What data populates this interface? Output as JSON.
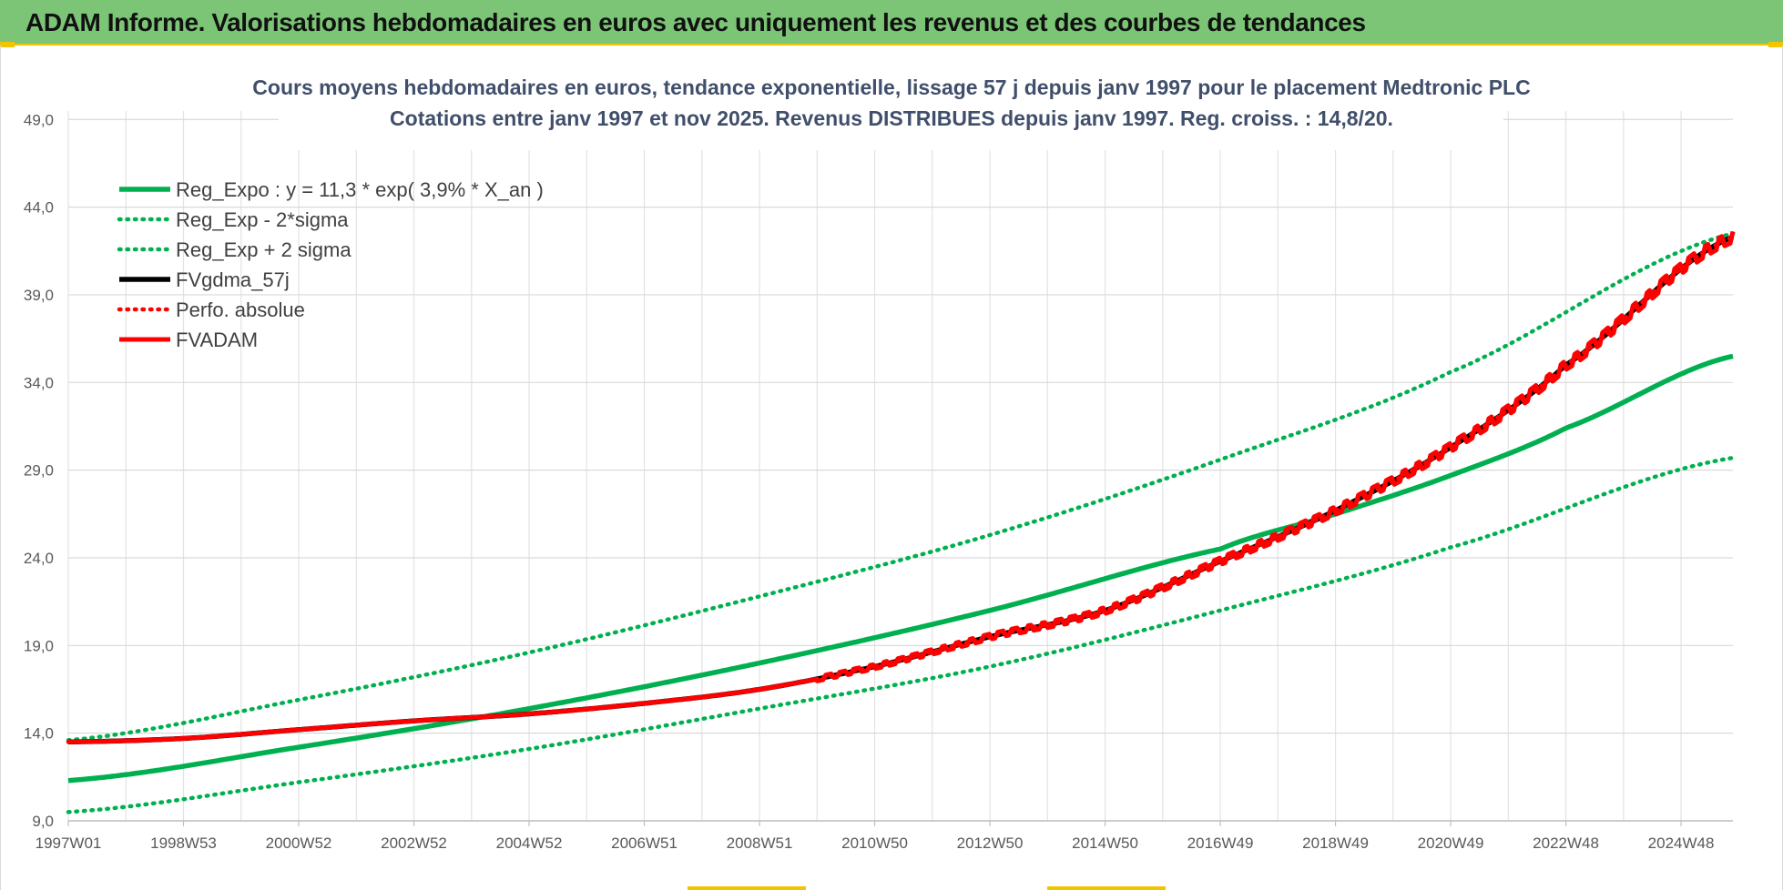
{
  "header": {
    "title": "ADAM Informe. Valorisations hebdomadaires en euros avec uniquement les revenus et des courbes de tendances"
  },
  "chart_data": {
    "type": "line",
    "title_line1": "Cours moyens hebdomadaires en euros, tendance exponentielle, lissage 57 j depuis janv 1997 pour le placement Medtronic PLC",
    "title_line2": "Cotations entre janv 1997 et nov 2025. Revenus DISTRIBUES depuis janv 1997. Reg. croiss. : 14,8/20.",
    "x_tick_labels": [
      "1997W01",
      "1998W53",
      "2000W52",
      "2002W52",
      "2004W52",
      "2006W51",
      "2008W51",
      "2010W50",
      "2012W50",
      "2014W50",
      "2016W49",
      "2018W49",
      "2020W49",
      "2022W48",
      "2024W48"
    ],
    "x_ticks_year": [
      1997,
      1999,
      2001,
      2003,
      2005,
      2007,
      2009,
      2011,
      2013,
      2015,
      2017,
      2019,
      2021,
      2023,
      2025
    ],
    "xlim": [
      1997,
      2025.9
    ],
    "y_tick_labels": [
      "9,0",
      "14,0",
      "19,0",
      "24,0",
      "29,0",
      "34,0",
      "39,0",
      "44,0",
      "49,0"
    ],
    "y_ticks": [
      9,
      14,
      19,
      24,
      29,
      34,
      39,
      44,
      49
    ],
    "ylim": [
      9,
      50
    ],
    "grid": true,
    "legend_position": "top-left",
    "series": [
      {
        "name": "Reg_Expo : y = 11,3 * exp( 3,9% *  X_an )",
        "color": "#00b050",
        "style": "solid",
        "x": [
          1997,
          2001,
          2005,
          2009,
          2013,
          2017,
          2019,
          2021,
          2023,
          2025.9
        ],
        "values": [
          11.3,
          13.2,
          15.4,
          18.0,
          21.0,
          24.5,
          26.5,
          28.7,
          31.4,
          35.5
        ]
      },
      {
        "name": "Reg_Exp - 2*sigma",
        "color": "#00b050",
        "style": "dotted",
        "x": [
          1997,
          2001,
          2005,
          2009,
          2013,
          2017,
          2021,
          2025.9
        ],
        "values": [
          9.5,
          11.2,
          13.1,
          15.4,
          17.8,
          21.0,
          24.6,
          29.7
        ]
      },
      {
        "name": "Reg_Exp + 2 sigma",
        "color": "#00b050",
        "style": "dotted",
        "x": [
          1997,
          2001,
          2005,
          2009,
          2013,
          2017,
          2021,
          2025.9
        ],
        "values": [
          13.6,
          15.9,
          18.6,
          21.8,
          25.3,
          29.6,
          34.6,
          42.5
        ]
      },
      {
        "name": "FVgdma_57j",
        "color": "#000000",
        "style": "solid",
        "x": [
          1997,
          1999,
          2001,
          2003,
          2005,
          2007,
          2009,
          2011,
          2013,
          2015,
          2017,
          2019,
          2021,
          2023,
          2025.9
        ],
        "values": [
          13.5,
          13.7,
          14.2,
          14.7,
          15.1,
          15.7,
          16.5,
          17.8,
          19.5,
          21.0,
          23.8,
          26.7,
          30.3,
          35.0,
          42.3
        ]
      },
      {
        "name": "Perfo. absolue",
        "color": "#ff0000",
        "style": "dotted",
        "x": [
          1997,
          1999,
          2001,
          2003,
          2005,
          2007,
          2009,
          2011,
          2013,
          2015,
          2017,
          2019,
          2021,
          2023,
          2025.9
        ],
        "values": [
          13.5,
          13.7,
          14.2,
          14.7,
          15.1,
          15.7,
          16.5,
          17.8,
          19.5,
          21.0,
          23.8,
          26.7,
          30.3,
          35.0,
          42.3
        ]
      },
      {
        "name": "FVADAM",
        "color": "#ff0000",
        "style": "solid",
        "x": [
          1997,
          1999,
          2001,
          2003,
          2005,
          2007,
          2009,
          2011,
          2013,
          2015,
          2017,
          2019,
          2021,
          2023,
          2025.9
        ],
        "values": [
          13.5,
          13.7,
          14.2,
          14.7,
          15.1,
          15.7,
          16.5,
          17.8,
          19.5,
          21.0,
          23.8,
          26.7,
          30.3,
          35.0,
          42.3
        ]
      }
    ]
  }
}
